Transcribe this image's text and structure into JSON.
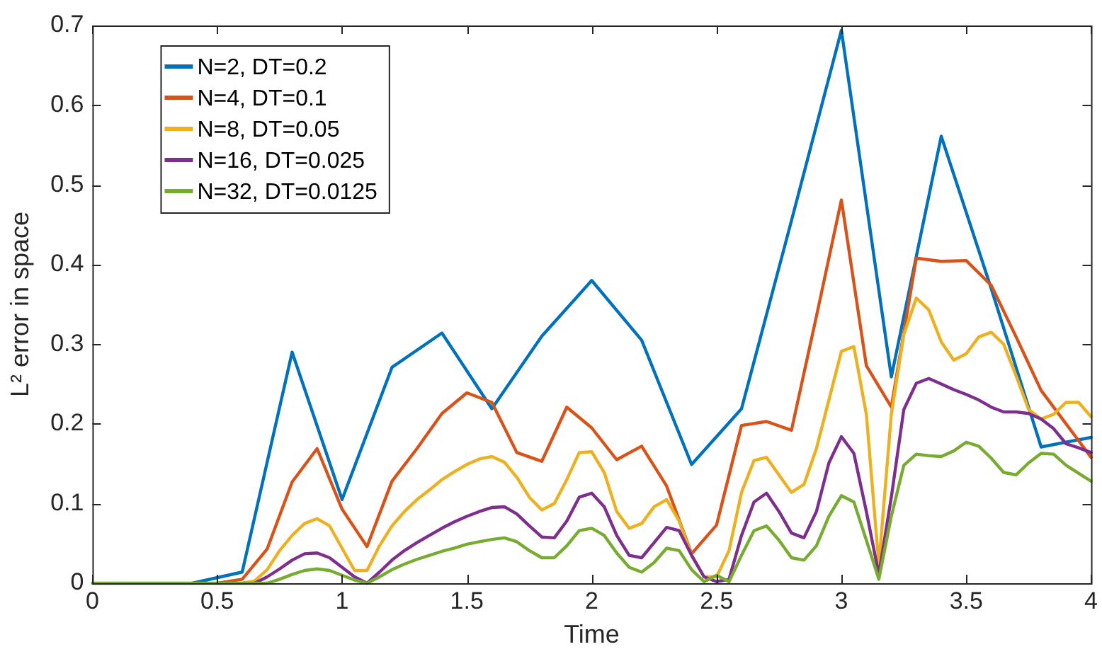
{
  "chart_data": {
    "type": "line",
    "xlabel": "Time",
    "ylabel": "L² error in space",
    "xlim": [
      0,
      4
    ],
    "xticks": [
      0,
      0.5,
      1,
      1.5,
      2,
      2.5,
      3,
      3.5,
      4
    ],
    "ylim": [
      0,
      0.7
    ],
    "yticks": [
      0,
      0.1,
      0.2,
      0.3,
      0.4,
      0.5,
      0.6,
      0.7
    ],
    "grid": false,
    "legend": "top left",
    "marker": "none",
    "line_style": "solid",
    "series": [
      {
        "name": "N=2, DT=0.2",
        "color": "#0072bd",
        "x": [
          0.4,
          0.6,
          0.8,
          1,
          1.2,
          1.4,
          1.6,
          1.8,
          2,
          2.2,
          2.4,
          2.6,
          2.8,
          3,
          3.2,
          3.4,
          3.6,
          3.8,
          4
        ],
        "values": [
          0,
          0.014,
          0.29,
          0.105,
          0.271,
          0.314,
          0.219,
          0.31,
          0.38,
          0.305,
          0.149,
          0.219,
          0.455,
          0.694,
          0.259,
          0.561,
          0.37,
          0.171,
          0.183
        ]
      },
      {
        "name": "N=4, DT=0.1",
        "color": "#d95319",
        "x": [
          0.5,
          0.6,
          0.7,
          0.8,
          0.9,
          1,
          1.1,
          1.2,
          1.3,
          1.4,
          1.5,
          1.6,
          1.7,
          1.8,
          1.9,
          2,
          2.1,
          2.2,
          2.3,
          2.4,
          2.5,
          2.6,
          2.7,
          2.8,
          2.9,
          3,
          3.1,
          3.2,
          3.3,
          3.4,
          3.5,
          3.6,
          3.7,
          3.8,
          3.9,
          4
        ],
        "values": [
          0,
          0.005,
          0.043,
          0.127,
          0.169,
          0.093,
          0.046,
          0.128,
          0.169,
          0.213,
          0.239,
          0.227,
          0.164,
          0.153,
          0.221,
          0.195,
          0.155,
          0.172,
          0.122,
          0.037,
          0.073,
          0.198,
          0.203,
          0.192,
          0.335,
          0.481,
          0.273,
          0.221,
          0.408,
          0.404,
          0.405,
          0.374,
          0.309,
          0.242,
          0.2,
          0.158
        ]
      },
      {
        "name": "N=8, DT=0.05",
        "color": "#edb120",
        "x": [
          0.6,
          0.65,
          0.7,
          0.75,
          0.8,
          0.85,
          0.9,
          0.95,
          1,
          1.05,
          1.1,
          1.15,
          1.2,
          1.25,
          1.3,
          1.35,
          1.4,
          1.45,
          1.5,
          1.55,
          1.6,
          1.65,
          1.7,
          1.75,
          1.8,
          1.85,
          1.9,
          1.95,
          2,
          2.05,
          2.1,
          2.15,
          2.2,
          2.25,
          2.3,
          2.35,
          2.4,
          2.45,
          2.5,
          2.55,
          2.6,
          2.65,
          2.7,
          2.75,
          2.8,
          2.85,
          2.9,
          2.95,
          3,
          3.05,
          3.1,
          3.15,
          3.2,
          3.25,
          3.3,
          3.35,
          3.4,
          3.45,
          3.5,
          3.55,
          3.6,
          3.65,
          3.7,
          3.75,
          3.8,
          3.85,
          3.9,
          3.95,
          4
        ],
        "values": [
          0,
          0.003,
          0.017,
          0.041,
          0.06,
          0.075,
          0.081,
          0.072,
          0.044,
          0.016,
          0.016,
          0.047,
          0.072,
          0.09,
          0.105,
          0.117,
          0.13,
          0.14,
          0.149,
          0.156,
          0.159,
          0.152,
          0.133,
          0.108,
          0.092,
          0.1,
          0.13,
          0.164,
          0.165,
          0.139,
          0.09,
          0.069,
          0.075,
          0.096,
          0.105,
          0.078,
          0.035,
          0.008,
          0.008,
          0.041,
          0.114,
          0.154,
          0.158,
          0.136,
          0.114,
          0.124,
          0.169,
          0.23,
          0.291,
          0.297,
          0.212,
          0.023,
          0.212,
          0.312,
          0.358,
          0.343,
          0.303,
          0.28,
          0.288,
          0.309,
          0.315,
          0.3,
          0.26,
          0.218,
          0.206,
          0.212,
          0.227,
          0.227,
          0.209
        ]
      },
      {
        "name": "N=16, DT=0.025",
        "color": "#7e2f8e",
        "x": [
          0.65,
          0.7,
          0.75,
          0.8,
          0.85,
          0.9,
          0.95,
          1,
          1.05,
          1.1,
          1.15,
          1.2,
          1.25,
          1.3,
          1.35,
          1.4,
          1.45,
          1.5,
          1.55,
          1.6,
          1.65,
          1.7,
          1.75,
          1.8,
          1.85,
          1.9,
          1.95,
          2,
          2.05,
          2.1,
          2.15,
          2.2,
          2.25,
          2.3,
          2.35,
          2.4,
          2.45,
          2.5,
          2.55,
          2.6,
          2.65,
          2.7,
          2.75,
          2.8,
          2.85,
          2.9,
          2.95,
          3,
          3.05,
          3.1,
          3.15,
          3.2,
          3.25,
          3.3,
          3.35,
          3.4,
          3.45,
          3.5,
          3.55,
          3.6,
          3.65,
          3.7,
          3.75,
          3.8,
          3.85,
          3.9,
          3.95,
          4
        ],
        "values": [
          0,
          0.008,
          0.018,
          0.029,
          0.037,
          0.038,
          0.032,
          0.02,
          0.008,
          0,
          0.014,
          0.029,
          0.041,
          0.051,
          0.06,
          0.069,
          0.077,
          0.084,
          0.09,
          0.095,
          0.096,
          0.087,
          0.072,
          0.058,
          0.057,
          0.078,
          0.108,
          0.113,
          0.096,
          0.06,
          0.035,
          0.032,
          0.051,
          0.07,
          0.066,
          0.035,
          0.008,
          0.002,
          0.005,
          0.06,
          0.102,
          0.113,
          0.09,
          0.063,
          0.057,
          0.09,
          0.151,
          0.184,
          0.163,
          0.09,
          0.011,
          0.108,
          0.218,
          0.251,
          0.257,
          0.25,
          0.243,
          0.237,
          0.23,
          0.221,
          0.215,
          0.215,
          0.213,
          0.206,
          0.194,
          0.175,
          0.17,
          0.164
        ]
      },
      {
        "name": "N=32, DT=0.0125",
        "color": "#77ac30",
        "x": [
          0,
          0.05,
          0.1,
          0.15,
          0.2,
          0.25,
          0.3,
          0.35,
          0.4,
          0.45,
          0.5,
          0.55,
          0.6,
          0.65,
          0.7,
          0.75,
          0.8,
          0.85,
          0.9,
          0.95,
          1,
          1.05,
          1.1,
          1.15,
          1.2,
          1.25,
          1.3,
          1.35,
          1.4,
          1.45,
          1.5,
          1.55,
          1.6,
          1.65,
          1.7,
          1.75,
          1.8,
          1.85,
          1.9,
          1.95,
          2,
          2.05,
          2.1,
          2.15,
          2.2,
          2.25,
          2.3,
          2.35,
          2.4,
          2.45,
          2.5,
          2.55,
          2.6,
          2.65,
          2.7,
          2.75,
          2.8,
          2.85,
          2.9,
          2.95,
          3,
          3.05,
          3.1,
          3.15,
          3.2,
          3.25,
          3.3,
          3.35,
          3.4,
          3.45,
          3.5,
          3.55,
          3.6,
          3.65,
          3.7,
          3.75,
          3.8,
          3.85,
          3.9,
          3.95,
          4
        ],
        "values": [
          0,
          0,
          0,
          0,
          0,
          0,
          0,
          0,
          0,
          0,
          0,
          0,
          0,
          0,
          0,
          0.005,
          0.011,
          0.016,
          0.018,
          0.016,
          0.01,
          0.004,
          0,
          0.008,
          0.017,
          0.024,
          0.03,
          0.035,
          0.04,
          0.044,
          0.049,
          0.052,
          0.055,
          0.057,
          0.052,
          0.041,
          0.032,
          0.032,
          0.047,
          0.066,
          0.069,
          0.06,
          0.038,
          0.02,
          0.014,
          0.026,
          0.044,
          0.041,
          0.017,
          0.002,
          0.01,
          0.002,
          0.035,
          0.066,
          0.072,
          0.054,
          0.032,
          0.029,
          0.047,
          0.084,
          0.11,
          0.102,
          0.054,
          0.005,
          0.084,
          0.148,
          0.162,
          0.16,
          0.159,
          0.166,
          0.177,
          0.172,
          0.157,
          0.139,
          0.136,
          0.151,
          0.163,
          0.162,
          0.148,
          0.138,
          0.128
        ]
      }
    ]
  }
}
